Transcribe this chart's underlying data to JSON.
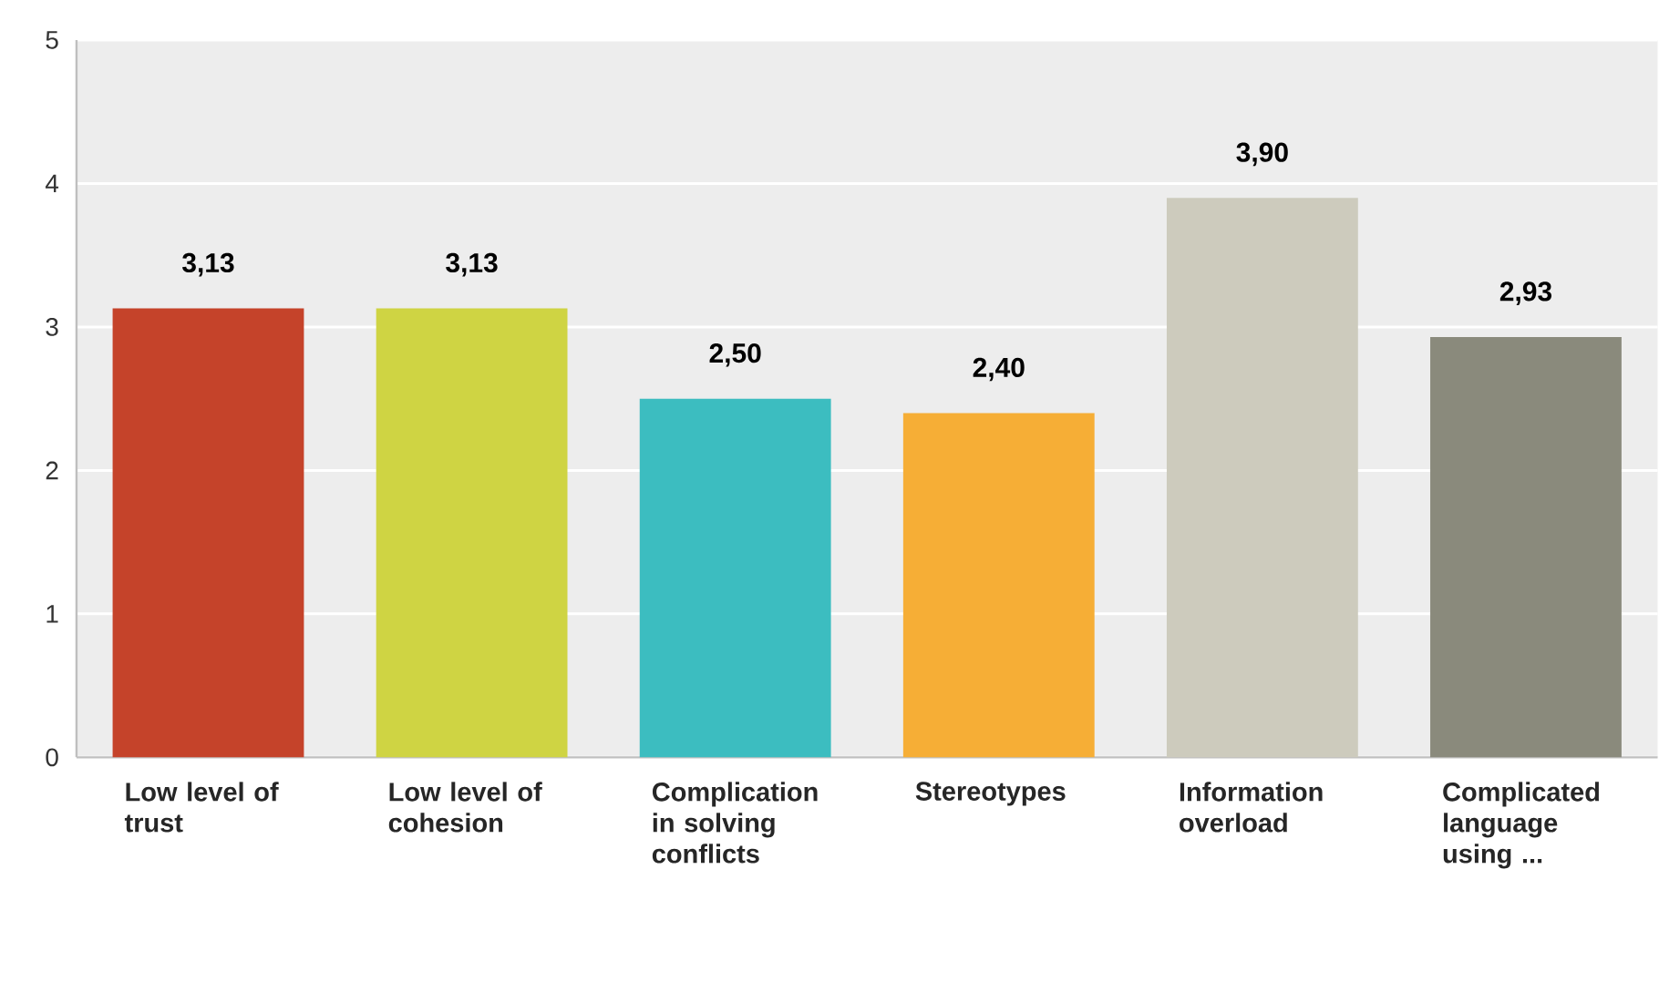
{
  "chart_data": {
    "type": "bar",
    "categories": [
      "Low level of trust",
      "Low level of cohesion",
      "Complication in solving conflicts",
      "Stereotypes",
      "Information overload",
      "Complicated language using ..."
    ],
    "values": [
      3.13,
      3.13,
      2.5,
      2.4,
      3.9,
      2.93
    ],
    "value_labels": [
      "3,13",
      "3,13",
      "2,50",
      "2,40",
      "3,90",
      "2,93"
    ],
    "colors": [
      "#c5432a",
      "#cfd443",
      "#3cbdc0",
      "#f6ae36",
      "#cdcbbd",
      "#8a8a7c"
    ],
    "ylim": [
      0,
      5
    ],
    "yticks": [
      0,
      1,
      2,
      3,
      4,
      5
    ],
    "grid": "y"
  }
}
